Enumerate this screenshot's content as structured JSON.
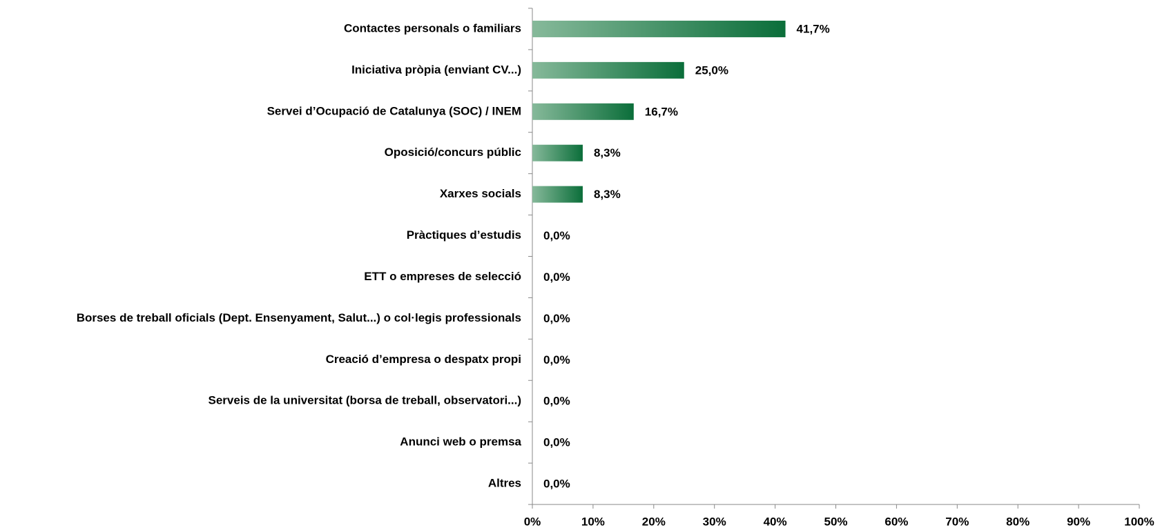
{
  "chart_data": {
    "type": "bar",
    "orientation": "horizontal",
    "categories": [
      "Contactes personals o familiars",
      "Iniciativa pròpia (enviant CV...)",
      "Servei d’Ocupació de Catalunya (SOC) / INEM",
      "Oposició/concurs públic",
      "Xarxes socials",
      "Pràctiques d’estudis",
      "ETT o empreses de selecció",
      "Borses de treball oficials (Dept. Ensenyament, Salut...) o col·legis professionals",
      "Creació d’empresa o despatx propi",
      "Serveis de la universitat (borsa de treball, observatori...)",
      "Anunci web o premsa",
      "Altres"
    ],
    "values": [
      41.7,
      25.0,
      16.7,
      8.3,
      8.3,
      0,
      0,
      0,
      0,
      0,
      0,
      0
    ],
    "value_labels": [
      "41,7%",
      "25,0%",
      "16,7%",
      "8,3%",
      "8,3%",
      "0,0%",
      "0,0%",
      "0,0%",
      "0,0%",
      "0,0%",
      "0,0%",
      "0,0%"
    ],
    "color": [
      "#86b99a",
      "#0b6e3a"
    ],
    "xlim": [
      0,
      100
    ],
    "xticks": [
      {
        "value": 0,
        "label": "0%"
      },
      {
        "value": 10,
        "label": "10%"
      },
      {
        "value": 20,
        "label": "20%"
      },
      {
        "value": 30,
        "label": "30%"
      },
      {
        "value": 40,
        "label": "40%"
      },
      {
        "value": 50,
        "label": "50%"
      },
      {
        "value": 60,
        "label": "60%"
      },
      {
        "value": 70,
        "label": "70%"
      },
      {
        "value": 80,
        "label": "80%"
      },
      {
        "value": 90,
        "label": "90%"
      },
      {
        "value": 100,
        "label": "100%"
      }
    ],
    "grid": false
  }
}
